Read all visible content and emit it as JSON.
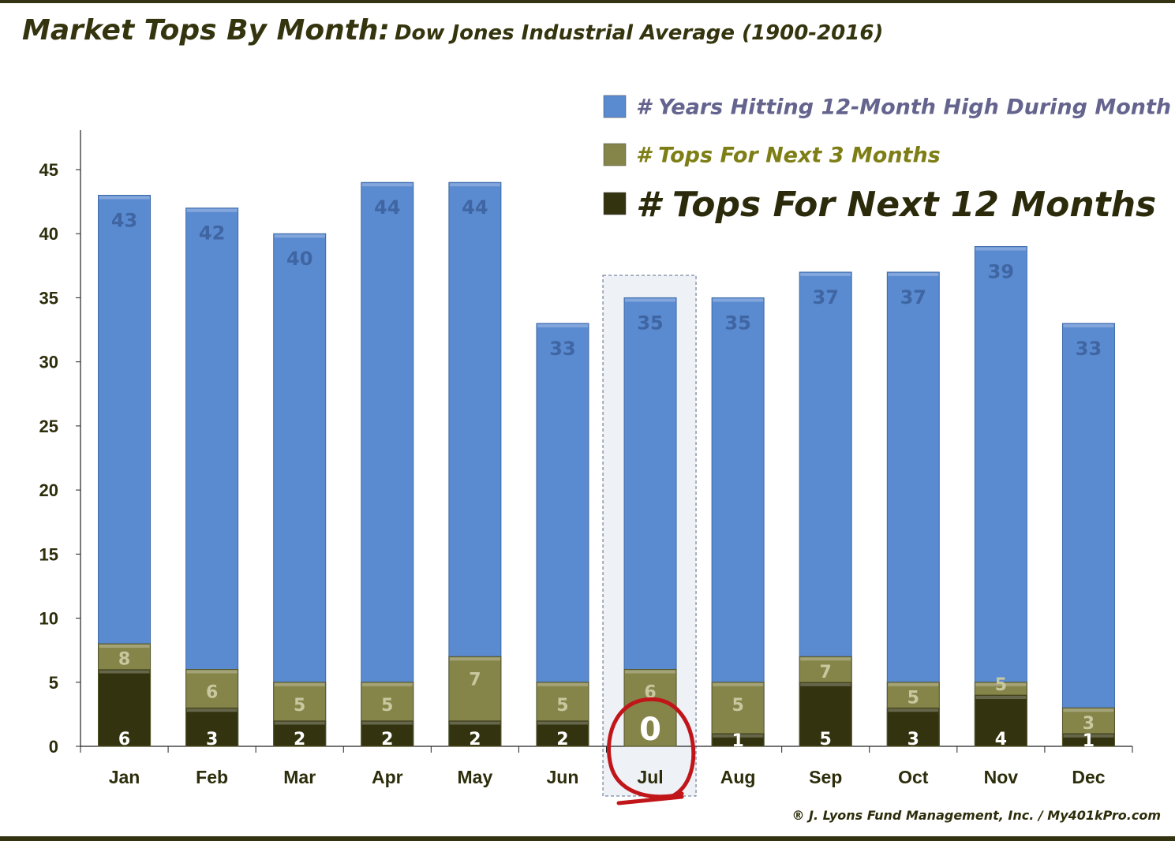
{
  "chart_data": {
    "type": "bar",
    "title": "Market Tops By Month:",
    "subtitle": "Dow Jones Industrial Average (1900-2016)",
    "categories": [
      "Jan",
      "Feb",
      "Mar",
      "Apr",
      "May",
      "Jun",
      "Jul",
      "Aug",
      "Sep",
      "Oct",
      "Nov",
      "Dec"
    ],
    "series": [
      {
        "name": "# Years Hitting 12-Month High During Month",
        "color": "#5a8ad0",
        "values": [
          43,
          42,
          40,
          44,
          44,
          33,
          35,
          35,
          37,
          37,
          39,
          33
        ]
      },
      {
        "name": "# Tops For Next 3 Months",
        "color": "#85854a",
        "values": [
          8,
          6,
          5,
          5,
          7,
          5,
          6,
          5,
          7,
          5,
          5,
          3
        ]
      },
      {
        "name": "# Tops For Next 12 Months",
        "color": "#33330f",
        "values": [
          6,
          3,
          2,
          2,
          2,
          2,
          0,
          1,
          5,
          3,
          4,
          1
        ]
      }
    ],
    "overlapping": true,
    "ylim": [
      0,
      48
    ],
    "yticks": [
      0,
      5,
      10,
      15,
      20,
      25,
      30,
      35,
      40,
      45
    ],
    "grid": false,
    "legend": "top-right",
    "highlight": {
      "category": "Jul",
      "note": "circled zero"
    },
    "xlabel": "",
    "ylabel": ""
  },
  "credit": "® J. Lyons Fund Management, Inc. / My401kPro.com"
}
